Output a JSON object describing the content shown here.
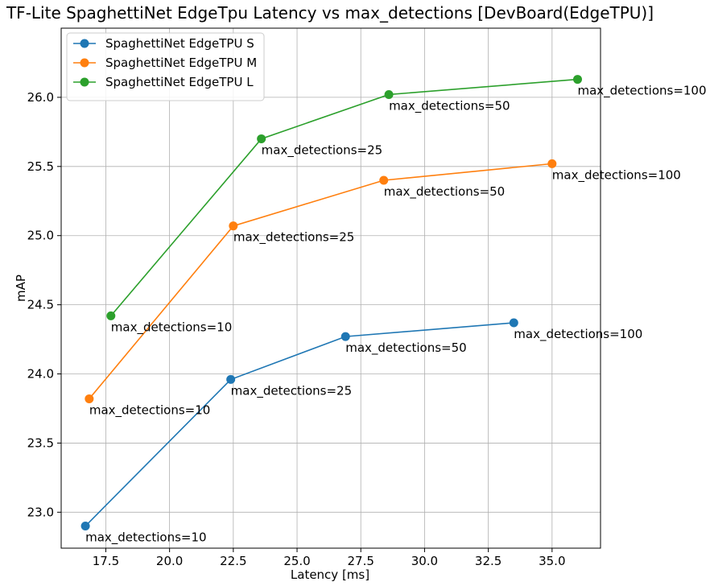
{
  "chart_data": {
    "type": "line",
    "title": "TF-Lite SpaghettiNet EdgeTpu Latency vs max_detections [DevBoard(EdgeTPU)]",
    "xlabel": "Latency [ms]",
    "ylabel": "mAP",
    "xlim": [
      15.75,
      36.9
    ],
    "ylim": [
      22.74,
      26.5
    ],
    "xticks": [
      17.5,
      20.0,
      22.5,
      25.0,
      27.5,
      30.0,
      32.5,
      35.0
    ],
    "xtick_labels": [
      "17.5",
      "20.0",
      "22.5",
      "25.0",
      "27.5",
      "30.0",
      "32.5",
      "35.0"
    ],
    "yticks": [
      23.0,
      23.5,
      24.0,
      24.5,
      25.0,
      25.5,
      26.0
    ],
    "ytick_labels": [
      "23.0",
      "23.5",
      "24.0",
      "24.5",
      "25.0",
      "25.5",
      "26.0"
    ],
    "grid": true,
    "legend_position": "upper-left",
    "series": [
      {
        "name": "SpaghettiNet EdgeTPU S",
        "color": "#1f77b4",
        "x": [
          16.7,
          22.4,
          26.9,
          33.5
        ],
        "y": [
          22.9,
          23.96,
          24.27,
          24.37
        ],
        "labels": [
          "max_detections=10",
          "max_detections=25",
          "max_detections=50",
          "max_detections=100"
        ]
      },
      {
        "name": "SpaghettiNet EdgeTPU M",
        "color": "#ff7f0e",
        "x": [
          16.85,
          22.5,
          28.4,
          35.0
        ],
        "y": [
          23.82,
          25.07,
          25.4,
          25.52
        ],
        "labels": [
          "max_detections=10",
          "max_detections=25",
          "max_detections=50",
          "max_detections=100"
        ]
      },
      {
        "name": "SpaghettiNet EdgeTPU L",
        "color": "#2ca02c",
        "x": [
          17.7,
          23.6,
          28.6,
          36.0
        ],
        "y": [
          24.42,
          25.7,
          26.02,
          26.13
        ],
        "labels": [
          "max_detections=10",
          "max_detections=25",
          "max_detections=50",
          "max_detections=100"
        ]
      }
    ]
  }
}
